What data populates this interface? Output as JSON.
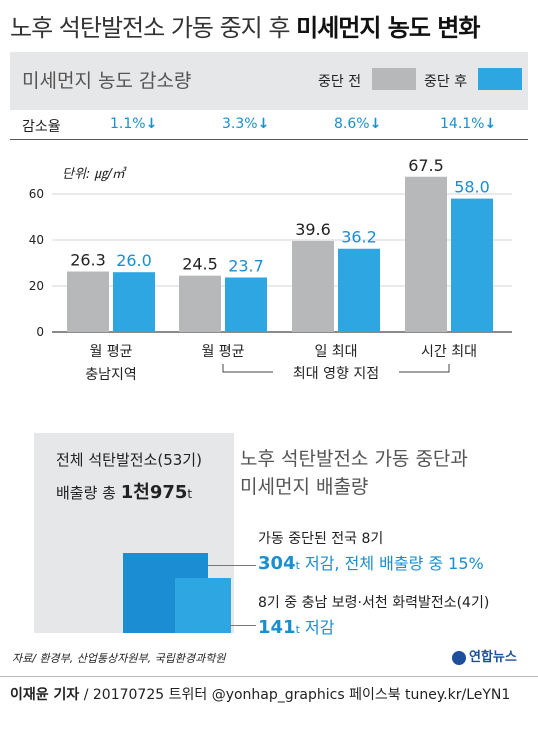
{
  "header": {
    "title_normal": "노후 석탄발전소 가동 중지 후 ",
    "title_bold": "미세먼지 농도 변화"
  },
  "top_panel": {
    "subtitle": "미세먼지 농도 감소량",
    "legend_before": "중단 전",
    "legend_after": "중단 후",
    "color_before": "#b7b8ba",
    "color_after": "#2ea6e2"
  },
  "reduction": {
    "label": "감소율",
    "rates": [
      "1.1%",
      "3.3%",
      "8.6%",
      "14.1%"
    ],
    "arrow": "↓"
  },
  "chart_data": {
    "type": "bar",
    "unit_note": "단위: ㎍/㎥",
    "categories": [
      "월 평균\n충남지역",
      "월 평균",
      "일 최대",
      "시간 최대"
    ],
    "category_lines": [
      [
        "월 평균",
        "충남지역"
      ],
      [
        "월 평균",
        ""
      ],
      [
        "일 최대",
        ""
      ],
      [
        "시간 최대",
        ""
      ]
    ],
    "group_label": "최대 영향 지점",
    "series": [
      {
        "name": "중단 전",
        "values": [
          26.3,
          24.5,
          39.6,
          67.5
        ]
      },
      {
        "name": "중단 후",
        "values": [
          26.0,
          23.7,
          36.2,
          58.0
        ]
      }
    ],
    "value_labels": [
      [
        "26.3",
        "24.5",
        "39.6",
        "67.5"
      ],
      [
        "26.0",
        "23.7",
        "36.2",
        "58.0"
      ]
    ],
    "yticks": [
      "0",
      "20",
      "40",
      "60"
    ],
    "ytick_values": [
      0,
      20,
      40,
      60
    ],
    "ylim": [
      0,
      70
    ],
    "grid": true
  },
  "emissions": {
    "total_line1": "전체 석탄발전소(53기)",
    "total_prefix": "배출량 총 ",
    "total_value": "1천975",
    "total_unit": "t",
    "section_title1": "노후 석탄발전소 가동 중단과",
    "section_title2": "미세먼지 배출량",
    "stop8_label": "가동 중단된 전국 8기",
    "stop8_value": "304",
    "stop8_unit": "t",
    "stop8_text": " 저감, 전체 배출량 중 15%",
    "cn4_label": "8기 중 충남 보령·서천 화력발전소(4기)",
    "cn4_value": "141",
    "cn4_unit": "t",
    "cn4_text": " 저감"
  },
  "source": "자료/ 환경부, 산업통상자원부, 국립환경과학원",
  "logo": "연합뉴스",
  "footer": {
    "author": "이재윤 기자",
    "rest": " / 20170725   트위터 @yonhap_graphics  페이스북 tuney.kr/LeYN1"
  }
}
